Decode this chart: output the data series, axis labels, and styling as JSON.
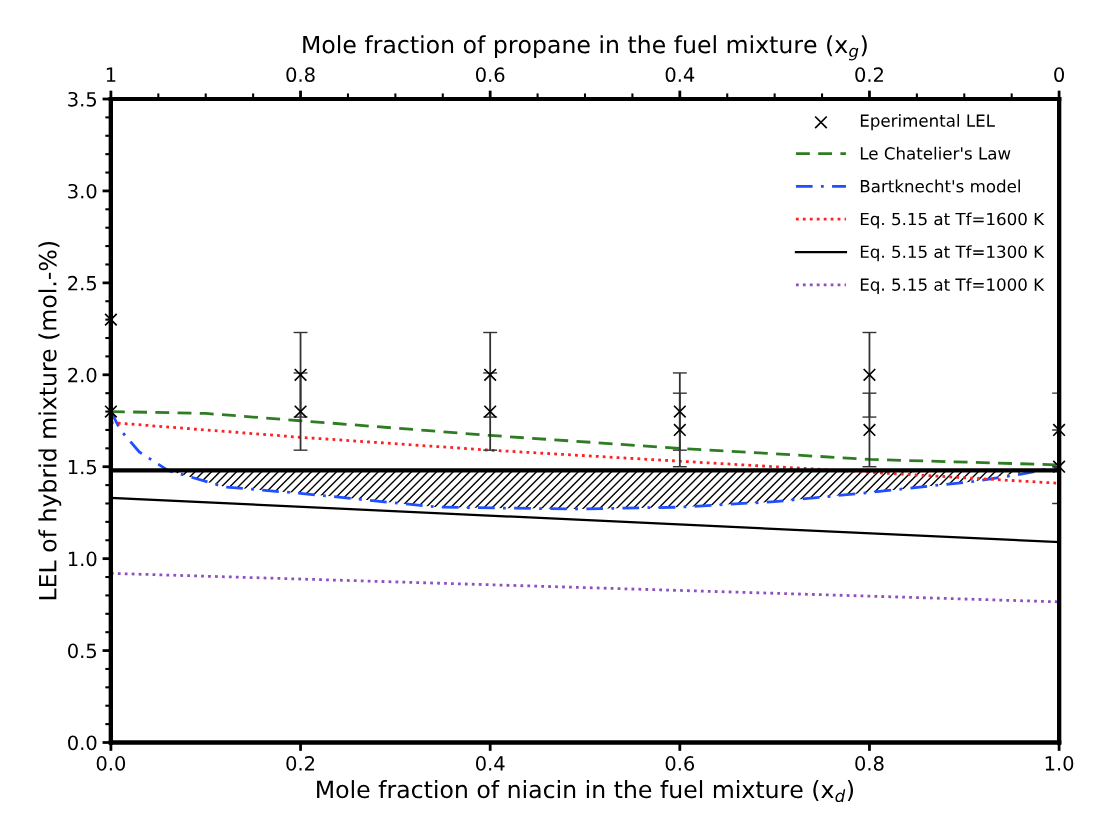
{
  "chart_data": {
    "type": "line",
    "xlabel": "Mole fraction of niacin in the fuel mixture (x$_{d}$)",
    "x2label": "Mole fraction of propane in the fuel mixture (x$_{g}$)",
    "ylabel": "LEL of hybrid mixture (mol.-%)",
    "xlim": [
      0,
      1
    ],
    "xticks": [
      {
        "value": 0,
        "label": "0.0"
      },
      0.2,
      0.4,
      0.6,
      0.8,
      {
        "value": 1,
        "label": "1.0"
      }
    ],
    "x2lim": [
      1,
      0
    ],
    "x2ticks": [
      1,
      0.8,
      0.6,
      0.4,
      0.2,
      0
    ],
    "ylim": [
      0,
      3.5
    ],
    "yticks": [
      {
        "value": 0,
        "label": "0.0"
      },
      0.5,
      {
        "value": 1,
        "label": "1.0"
      },
      1.5,
      {
        "value": 2,
        "label": "2.0"
      },
      2.5,
      {
        "value": 3,
        "label": "3.0"
      },
      3.5
    ],
    "grid": false,
    "legend": "top right",
    "series": [
      {
        "name": "Eperimental LEL",
        "type": "scatter",
        "marker": "cross",
        "color": "#000000",
        "x": [
          0,
          0,
          0.2,
          0.2,
          0.4,
          0.4,
          0.6,
          0.6,
          0.8,
          0.8,
          1,
          1
        ],
        "values": [
          2.3,
          1.8,
          2.0,
          1.8,
          2.0,
          1.8,
          1.8,
          1.7,
          2.0,
          1.7,
          1.7,
          1.5
        ],
        "errors": [
          null,
          null,
          0.23,
          0.21,
          0.23,
          0.21,
          0.21,
          0.2,
          0.23,
          0.2,
          0.2,
          0.2
        ]
      },
      {
        "name": "Le Chatelier's Law",
        "line_style": "dashed",
        "color": "#2e7d22",
        "x": [
          0,
          0.1,
          0.2,
          0.4,
          0.6,
          0.8,
          1
        ],
        "values": [
          1.8,
          1.79,
          1.75,
          1.67,
          1.6,
          1.54,
          1.51
        ]
      },
      {
        "name": "Bartknecht's model",
        "line_style": "dashdot",
        "color": "#1f4fff",
        "x": [
          0,
          0.01,
          0.03,
          0.06,
          0.12,
          0.2,
          0.345,
          0.49,
          0.6,
          0.7,
          0.8,
          0.91,
          0.96,
          1
        ],
        "values": [
          1.8,
          1.7,
          1.58,
          1.48,
          1.39,
          1.355,
          1.28,
          1.27,
          1.28,
          1.31,
          1.36,
          1.42,
          1.46,
          1.5
        ]
      },
      {
        "name": "Eq. 5.15 at Tf=1600 K",
        "line_style": "dotted",
        "color": "#ff2020",
        "x": [
          0,
          0.2,
          0.4,
          0.6,
          0.8,
          1
        ],
        "values": [
          1.74,
          1.66,
          1.59,
          1.53,
          1.47,
          1.41
        ]
      },
      {
        "name": "Eq. 5.15 at Tf=1300 K",
        "line_style": "solid",
        "color": "#000000",
        "x": [
          0,
          1
        ],
        "values": [
          1.33,
          1.09
        ]
      },
      {
        "type": "area",
        "color": "#000000",
        "x": [
          0.06,
          0.12,
          0.2,
          0.345,
          0.49,
          0.6,
          0.7,
          0.8,
          0.91,
          0.97
        ],
        "values": [
          1.48,
          1.39,
          1.355,
          1.28,
          1.27,
          1.28,
          1.31,
          1.36,
          1.42,
          1.48
        ]
      },
      {
        "name": "Eq. 5.15 at Tf=1000 K",
        "line_style": "dotted",
        "color": "#8e4fbf",
        "x": [
          0,
          1
        ],
        "values": [
          0.92,
          0.765
        ]
      }
    ],
    "ref_lines": [
      {
        "axis": "y",
        "value": 1.48,
        "color": "#000000",
        "line_style": "solid"
      }
    ]
  }
}
